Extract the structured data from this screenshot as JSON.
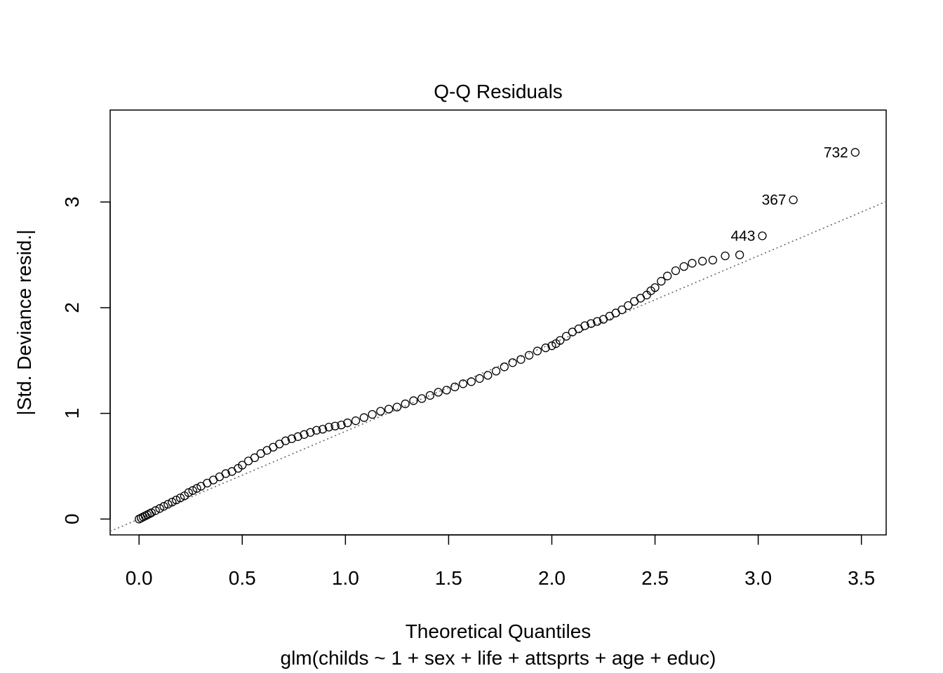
{
  "chart_data": {
    "type": "scatter",
    "title": "Q-Q Residuals",
    "xlabel": "Theoretical Quantiles",
    "subtitle": "glm(childs ~ 1 + sex + life + attsprts + age + educ)",
    "ylabel": "|Std. Deviance resid.|",
    "xlim": [
      -0.14,
      3.62
    ],
    "ylim": [
      -0.15,
      3.87
    ],
    "x_ticks": [
      "0.0",
      "0.5",
      "1.0",
      "1.5",
      "2.0",
      "2.5",
      "3.0",
      "3.5"
    ],
    "y_ticks": [
      "0",
      "1",
      "2",
      "3"
    ],
    "reference_line": {
      "style": "dotted",
      "color": "#666666",
      "intercept": 0.0,
      "slope": 0.83
    },
    "series": [
      {
        "marker": "open-circle",
        "x": [
          0.0,
          0.01,
          0.02,
          0.03,
          0.04,
          0.05,
          0.06,
          0.08,
          0.1,
          0.12,
          0.14,
          0.16,
          0.18,
          0.2,
          0.22,
          0.24,
          0.26,
          0.28,
          0.3,
          0.33,
          0.36,
          0.39,
          0.42,
          0.45,
          0.48,
          0.5,
          0.53,
          0.56,
          0.59,
          0.62,
          0.65,
          0.68,
          0.71,
          0.74,
          0.77,
          0.8,
          0.83,
          0.86,
          0.89,
          0.92,
          0.95,
          0.98,
          1.01,
          1.05,
          1.09,
          1.13,
          1.17,
          1.21,
          1.25,
          1.29,
          1.33,
          1.37,
          1.41,
          1.45,
          1.49,
          1.53,
          1.57,
          1.61,
          1.65,
          1.69,
          1.73,
          1.77,
          1.81,
          1.85,
          1.89,
          1.93,
          1.97,
          2.0,
          2.02,
          2.04,
          2.07,
          2.1,
          2.13,
          2.16,
          2.19,
          2.22,
          2.25,
          2.28,
          2.31,
          2.34,
          2.37,
          2.4,
          2.43,
          2.46,
          2.48,
          2.5,
          2.53,
          2.56,
          2.6,
          2.64,
          2.68,
          2.73,
          2.78,
          2.84,
          2.91,
          3.02,
          3.17,
          3.47
        ],
        "y": [
          0.0,
          0.01,
          0.02,
          0.03,
          0.04,
          0.05,
          0.06,
          0.08,
          0.1,
          0.12,
          0.14,
          0.16,
          0.18,
          0.2,
          0.22,
          0.25,
          0.27,
          0.29,
          0.31,
          0.34,
          0.37,
          0.4,
          0.43,
          0.45,
          0.48,
          0.51,
          0.55,
          0.58,
          0.62,
          0.65,
          0.68,
          0.71,
          0.74,
          0.76,
          0.78,
          0.8,
          0.82,
          0.84,
          0.85,
          0.87,
          0.88,
          0.89,
          0.91,
          0.93,
          0.96,
          0.99,
          1.02,
          1.04,
          1.06,
          1.09,
          1.12,
          1.14,
          1.17,
          1.2,
          1.22,
          1.25,
          1.28,
          1.3,
          1.33,
          1.36,
          1.4,
          1.44,
          1.48,
          1.51,
          1.55,
          1.59,
          1.62,
          1.64,
          1.66,
          1.69,
          1.73,
          1.77,
          1.8,
          1.83,
          1.85,
          1.87,
          1.89,
          1.92,
          1.95,
          1.98,
          2.02,
          2.06,
          2.09,
          2.12,
          2.16,
          2.19,
          2.25,
          2.3,
          2.35,
          2.39,
          2.42,
          2.44,
          2.45,
          2.49,
          2.5,
          2.68,
          3.02,
          3.47
        ]
      }
    ],
    "point_labels": [
      {
        "text": "443",
        "x": 3.02,
        "y": 2.68
      },
      {
        "text": "367",
        "x": 3.17,
        "y": 3.02
      },
      {
        "text": "732",
        "x": 3.47,
        "y": 3.47
      }
    ]
  }
}
